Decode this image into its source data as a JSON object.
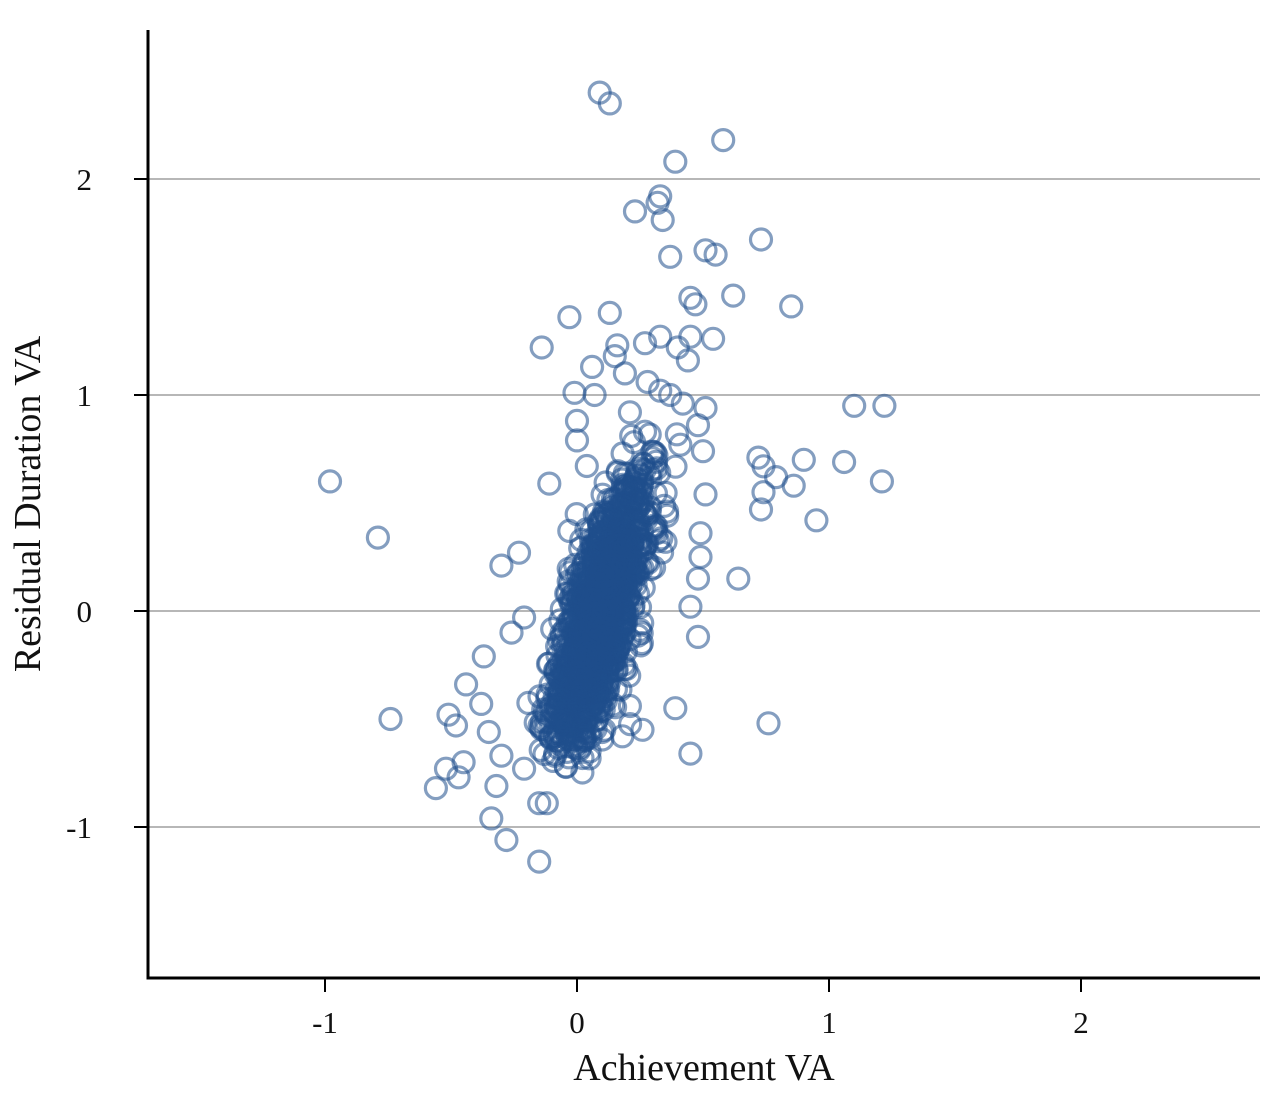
{
  "chart_data": {
    "type": "scatter",
    "xlabel": "Achievement VA",
    "ylabel": "Residual Duration VA",
    "xlim": [
      -1.7,
      2.7
    ],
    "ylim": [
      -1.7,
      2.7
    ],
    "x_ticks": [
      "-1",
      "0",
      "1",
      "2"
    ],
    "y_ticks": [
      "-1",
      "0",
      "1",
      "2"
    ],
    "grid": "horizontal",
    "marker": "hollow-circle",
    "color": "#1f4f8c",
    "series": [
      {
        "points": [
          [
            0.09,
            2.4
          ],
          [
            0.13,
            2.35
          ],
          [
            0.58,
            2.18
          ],
          [
            0.39,
            2.08
          ],
          [
            0.33,
            1.92
          ],
          [
            0.32,
            1.89
          ],
          [
            0.23,
            1.85
          ],
          [
            0.34,
            1.81
          ],
          [
            0.73,
            1.72
          ],
          [
            0.51,
            1.67
          ],
          [
            0.55,
            1.65
          ],
          [
            0.37,
            1.64
          ],
          [
            0.62,
            1.46
          ],
          [
            0.45,
            1.45
          ],
          [
            0.47,
            1.42
          ],
          [
            0.85,
            1.41
          ],
          [
            0.13,
            1.38
          ],
          [
            -0.03,
            1.36
          ],
          [
            0.33,
            1.27
          ],
          [
            0.45,
            1.27
          ],
          [
            0.54,
            1.26
          ],
          [
            0.27,
            1.24
          ],
          [
            0.16,
            1.23
          ],
          [
            -0.14,
            1.22
          ],
          [
            0.4,
            1.22
          ],
          [
            0.15,
            1.18
          ],
          [
            0.44,
            1.16
          ],
          [
            0.06,
            1.13
          ],
          [
            0.19,
            1.1
          ],
          [
            0.28,
            1.06
          ],
          [
            0.33,
            1.02
          ],
          [
            -0.01,
            1.01
          ],
          [
            0.07,
            1.0
          ],
          [
            0.37,
            1.0
          ],
          [
            0.42,
            0.96
          ],
          [
            1.1,
            0.95
          ],
          [
            1.22,
            0.95
          ],
          [
            0.51,
            0.94
          ],
          [
            0.21,
            0.92
          ],
          [
            0.0,
            0.88
          ],
          [
            0.48,
            0.86
          ],
          [
            0.27,
            0.83
          ],
          [
            0.0,
            0.79
          ],
          [
            0.41,
            0.77
          ],
          [
            0.5,
            0.74
          ],
          [
            0.72,
            0.71
          ],
          [
            0.9,
            0.7
          ],
          [
            1.06,
            0.69
          ],
          [
            0.74,
            0.67
          ],
          [
            0.79,
            0.62
          ],
          [
            -0.98,
            0.6
          ],
          [
            1.21,
            0.6
          ],
          [
            0.86,
            0.58
          ],
          [
            0.74,
            0.55
          ],
          [
            0.51,
            0.54
          ],
          [
            -0.11,
            0.59
          ],
          [
            0.73,
            0.47
          ],
          [
            0.95,
            0.42
          ],
          [
            -0.79,
            0.34
          ],
          [
            0.49,
            0.36
          ],
          [
            -0.23,
            0.27
          ],
          [
            0.49,
            0.25
          ],
          [
            -0.3,
            0.21
          ],
          [
            0.64,
            0.15
          ],
          [
            0.48,
            0.15
          ],
          [
            0.45,
            0.02
          ],
          [
            -0.21,
            -0.03
          ],
          [
            0.48,
            -0.12
          ],
          [
            -0.37,
            -0.21
          ],
          [
            -0.44,
            -0.34
          ],
          [
            -0.26,
            -0.1
          ],
          [
            -0.74,
            -0.5
          ],
          [
            -0.51,
            -0.48
          ],
          [
            -0.48,
            -0.53
          ],
          [
            0.76,
            -0.52
          ],
          [
            0.39,
            -0.45
          ],
          [
            0.26,
            -0.55
          ],
          [
            -0.45,
            -0.7
          ],
          [
            -0.52,
            -0.73
          ],
          [
            -0.47,
            -0.77
          ],
          [
            -0.56,
            -0.82
          ],
          [
            -0.32,
            -0.81
          ],
          [
            0.45,
            -0.66
          ],
          [
            -0.15,
            -0.89
          ],
          [
            -0.12,
            -0.89
          ],
          [
            -0.34,
            -0.96
          ],
          [
            -0.28,
            -1.06
          ],
          [
            -0.15,
            -1.16
          ],
          [
            -0.3,
            -0.67
          ],
          [
            -0.21,
            -0.73
          ],
          [
            -0.08,
            -0.6
          ],
          [
            0.05,
            -0.65
          ],
          [
            0.18,
            -0.58
          ],
          [
            -0.38,
            -0.43
          ],
          [
            -0.35,
            -0.56
          ],
          [
            0.21,
            -0.44
          ]
        ]
      }
    ],
    "dense_cluster": {
      "count": 1600,
      "x_center": 0.09,
      "y_center": -0.02,
      "x_sd": 0.09,
      "y_sd": 0.3,
      "correlation": 0.7
    }
  }
}
